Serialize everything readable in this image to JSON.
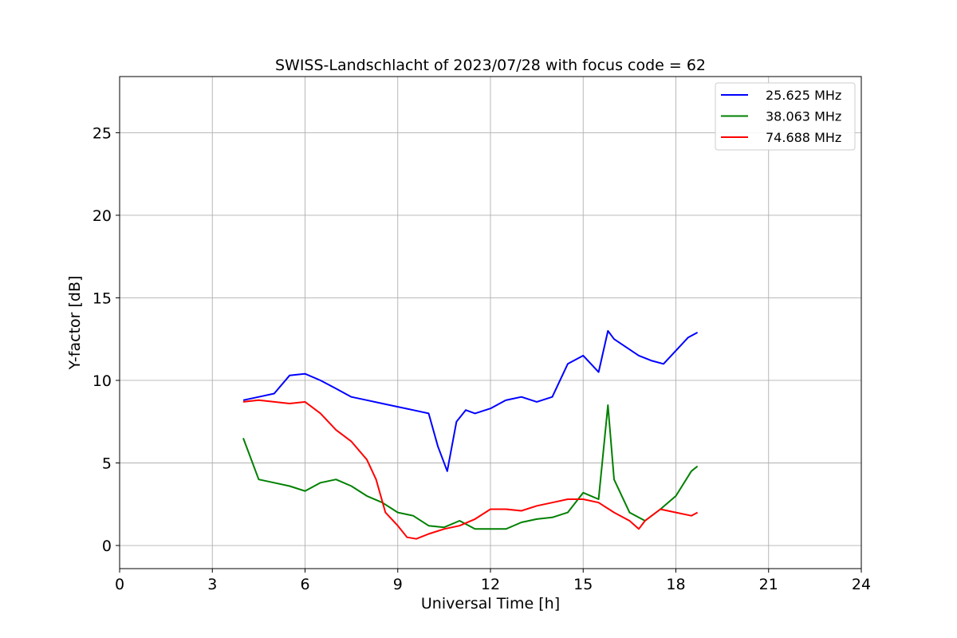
{
  "chart_data": {
    "type": "line",
    "title": "SWISS-Landschlacht of 2023/07/28 with focus code = 62",
    "xlabel": "Universal Time [h]",
    "ylabel": "Y-factor [dB]",
    "xlim": [
      0,
      24
    ],
    "ylim": [
      -1.4,
      28.4
    ],
    "xticks": [
      "0",
      "3",
      "6",
      "9",
      "12",
      "15",
      "18",
      "21",
      "24"
    ],
    "yticks": [
      "0",
      "5",
      "10",
      "15",
      "20",
      "25"
    ],
    "grid": true,
    "legend_position": "top-right",
    "series": [
      {
        "name": "25.625 MHz",
        "color": "#0000ff",
        "x": [
          4.0,
          4.5,
          5.0,
          5.5,
          6.0,
          6.5,
          7.0,
          7.5,
          8.0,
          8.5,
          9.0,
          9.5,
          10.0,
          10.3,
          10.6,
          10.9,
          11.2,
          11.5,
          12.0,
          12.5,
          13.0,
          13.5,
          14.0,
          14.5,
          15.0,
          15.5,
          15.8,
          16.0,
          16.4,
          16.8,
          17.2,
          17.6,
          18.0,
          18.4,
          18.7
        ],
        "y": [
          8.8,
          9.0,
          9.2,
          10.3,
          10.4,
          10.0,
          9.5,
          9.0,
          8.8,
          8.6,
          8.4,
          8.2,
          8.0,
          6.0,
          4.5,
          7.5,
          8.2,
          8.0,
          8.3,
          8.8,
          9.0,
          8.7,
          9.0,
          11.0,
          11.5,
          10.5,
          13.0,
          12.5,
          12.0,
          11.5,
          11.2,
          11.0,
          11.8,
          12.6,
          12.9
        ]
      },
      {
        "name": "38.063 MHz",
        "color": "#008000",
        "x": [
          4.0,
          4.2,
          4.5,
          5.0,
          5.5,
          6.0,
          6.5,
          7.0,
          7.5,
          8.0,
          8.5,
          9.0,
          9.5,
          10.0,
          10.5,
          11.0,
          11.5,
          12.0,
          12.5,
          13.0,
          13.5,
          14.0,
          14.5,
          15.0,
          15.5,
          15.8,
          16.0,
          16.5,
          17.0,
          17.5,
          18.0,
          18.5,
          18.7
        ],
        "y": [
          6.5,
          5.5,
          4.0,
          3.8,
          3.6,
          3.3,
          3.8,
          4.0,
          3.6,
          3.0,
          2.6,
          2.0,
          1.8,
          1.2,
          1.1,
          1.5,
          1.0,
          1.0,
          1.0,
          1.4,
          1.6,
          1.7,
          2.0,
          3.2,
          2.8,
          8.5,
          4.0,
          2.0,
          1.5,
          2.2,
          3.0,
          4.5,
          4.8
        ]
      },
      {
        "name": "74.688 MHz",
        "color": "#ff0000",
        "x": [
          4.0,
          4.5,
          5.0,
          5.5,
          6.0,
          6.5,
          7.0,
          7.5,
          8.0,
          8.3,
          8.6,
          9.0,
          9.3,
          9.6,
          10.0,
          10.5,
          11.0,
          11.5,
          12.0,
          12.5,
          13.0,
          13.5,
          14.0,
          14.5,
          15.0,
          15.5,
          16.0,
          16.5,
          16.8,
          17.0,
          17.5,
          18.0,
          18.5,
          18.7
        ],
        "y": [
          8.7,
          8.8,
          8.7,
          8.6,
          8.7,
          8.0,
          7.0,
          6.3,
          5.2,
          4.0,
          2.0,
          1.2,
          0.5,
          0.4,
          0.7,
          1.0,
          1.2,
          1.6,
          2.2,
          2.2,
          2.1,
          2.4,
          2.6,
          2.8,
          2.8,
          2.6,
          2.0,
          1.5,
          1.0,
          1.5,
          2.2,
          2.0,
          1.8,
          2.0
        ]
      }
    ]
  }
}
